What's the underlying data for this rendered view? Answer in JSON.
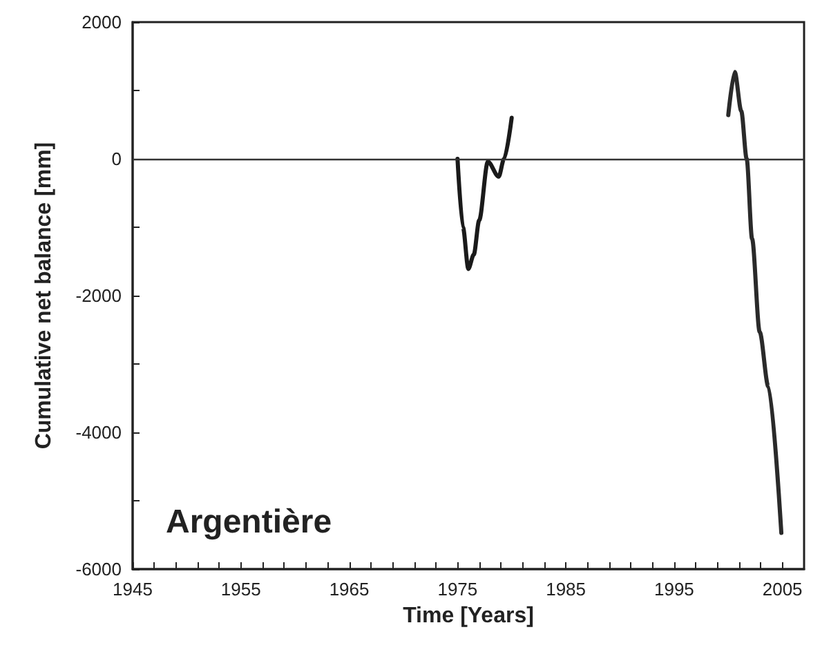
{
  "chart_data": {
    "type": "line",
    "xlabel": "Time [Years]",
    "ylabel": "Cumulative net balance [mm]",
    "annotations": [
      "Argentière"
    ],
    "series": [
      {
        "color": "#1a1a1a",
        "x": [
          1975,
          1975.5,
          1976,
          1976.5,
          1977,
          1977.8,
          1978.8,
          1979.3,
          1980
        ],
        "values": [
          0,
          -1000,
          -1610,
          -1400,
          -900,
          -40,
          -260,
          0,
          600
        ]
      },
      {
        "color": "#2a2a2a",
        "x": [
          2000,
          2000.6,
          2001.2,
          2001.7,
          2002.2,
          2002.9,
          2003.7,
          2004.9
        ],
        "values": [
          640,
          1270,
          700,
          0,
          -1170,
          -2530,
          -3330,
          -5470
        ]
      }
    ],
    "xlim": [
      1945,
      2007
    ],
    "xticks": [
      1945,
      {
        "value": 1947,
        "label": null
      },
      {
        "value": 1949,
        "label": null
      },
      {
        "value": 1951,
        "label": null
      },
      {
        "value": 1953,
        "label": null
      },
      1955,
      {
        "value": 1957,
        "label": null
      },
      {
        "value": 1959,
        "label": null
      },
      {
        "value": 1961,
        "label": null
      },
      {
        "value": 1963,
        "label": null
      },
      1965,
      {
        "value": 1967,
        "label": null
      },
      {
        "value": 1969,
        "label": null
      },
      {
        "value": 1971,
        "label": null
      },
      {
        "value": 1973,
        "label": null
      },
      1975,
      {
        "value": 1977,
        "label": null
      },
      {
        "value": 1979,
        "label": null
      },
      {
        "value": 1981,
        "label": null
      },
      {
        "value": 1983,
        "label": null
      },
      1985,
      {
        "value": 1987,
        "label": null
      },
      {
        "value": 1989,
        "label": null
      },
      {
        "value": 1991,
        "label": null
      },
      {
        "value": 1993,
        "label": null
      },
      1995,
      {
        "value": 1997,
        "label": null
      },
      {
        "value": 1999,
        "label": null
      },
      {
        "value": 2001,
        "label": null
      },
      {
        "value": 2003,
        "label": null
      },
      2005
    ],
    "ylim": [
      -6000,
      2000
    ],
    "yticks": [
      -6000,
      {
        "value": -5000,
        "label": null
      },
      -4000,
      {
        "value": -3000,
        "label": null
      },
      -2000,
      {
        "value": -1000,
        "label": null
      },
      0,
      {
        "value": 1000,
        "label": null
      },
      2000
    ],
    "ref_lines": [
      {
        "axis": "y",
        "value": 0,
        "color": "#333333"
      }
    ],
    "grid": false,
    "marker": "none",
    "line_style": "solid"
  }
}
